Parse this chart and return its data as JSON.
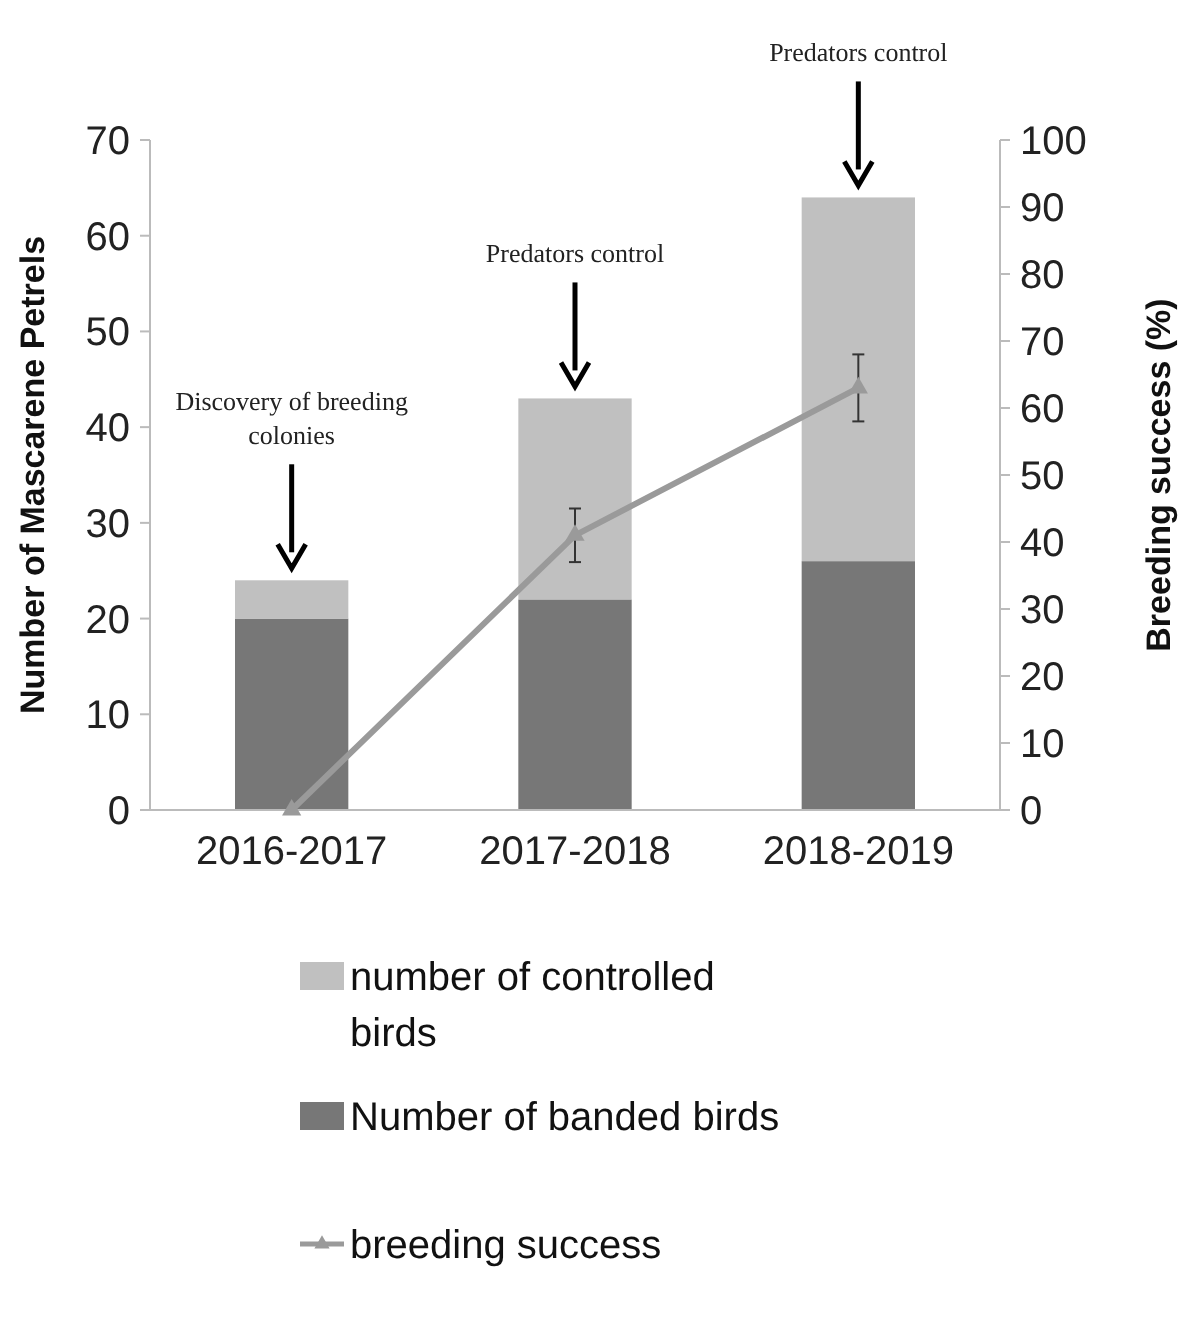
{
  "chart_data": {
    "type": "bar",
    "stacked": true,
    "categories": [
      "2016-2017",
      "2017-2018",
      "2018-2019"
    ],
    "ylabel": "Number of Mascarene Petrels",
    "y2label": "Breeding success (%)",
    "ylim": [
      0,
      70
    ],
    "yticks": [
      0,
      10,
      20,
      30,
      40,
      50,
      60,
      70
    ],
    "y2lim": [
      0,
      100
    ],
    "y2ticks": [
      0,
      10,
      20,
      30,
      40,
      50,
      60,
      70,
      80,
      90,
      100
    ],
    "series": [
      {
        "name": "Number of banded birds",
        "color": "#777777",
        "values": [
          20,
          22,
          26
        ]
      },
      {
        "name": "number of controlled birds",
        "color": "#c0c0c0",
        "values": [
          4,
          21,
          38
        ]
      },
      {
        "name": "breeding success",
        "type": "line",
        "axis": "y2",
        "color": "#9a9a9a",
        "values": [
          0,
          41,
          63
        ],
        "errors": [
          null,
          4,
          5
        ]
      }
    ],
    "marker": "triangle",
    "legend": "bottom",
    "annotations": [
      "Discovery of breeding colonies",
      "Predators control",
      "Predators control"
    ]
  }
}
